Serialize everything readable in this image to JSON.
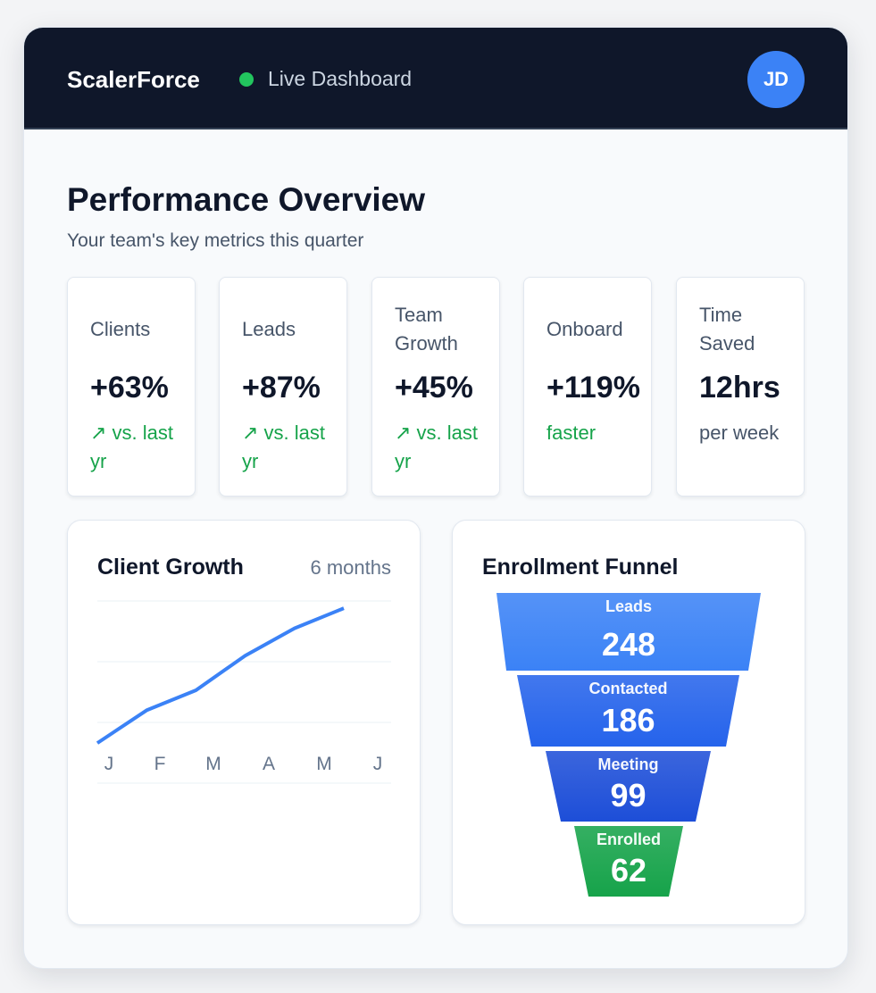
{
  "header": {
    "brand": "ScalerForce",
    "status": "Live Dashboard",
    "status_color": "#22c55e",
    "avatar_initials": "JD"
  },
  "overview": {
    "title": "Performance Overview",
    "subtitle": "Your team's key metrics this quarter"
  },
  "metrics": [
    {
      "label": "Clients",
      "value": "+63%",
      "sub": "↗ vs. last yr",
      "tone": "green"
    },
    {
      "label": "Leads",
      "value": "+87%",
      "sub": "↗ vs. last yr",
      "tone": "green"
    },
    {
      "label": "Team Growth",
      "value": "+45%",
      "sub": "↗ vs. last yr",
      "tone": "green"
    },
    {
      "label": "Onboard",
      "value": "+119%",
      "sub": "faster",
      "tone": "green"
    },
    {
      "label": "Time Saved",
      "value": "12hrs",
      "sub": "per week",
      "tone": "gray"
    }
  ],
  "growth": {
    "title": "Client Growth",
    "period": "6 months"
  },
  "chart_data": {
    "type": "line",
    "categories": [
      "J",
      "F",
      "M",
      "A",
      "M",
      "J"
    ],
    "values": [
      22,
      40,
      51,
      70,
      85,
      96
    ],
    "ylim": [
      0,
      100
    ],
    "grid": true,
    "color": "#3b82f6"
  },
  "funnel": {
    "title": "Enrollment Funnel",
    "stages": [
      {
        "label": "Leads",
        "value": "248",
        "color": "#3b82f6"
      },
      {
        "label": "Contacted",
        "value": "186",
        "color": "#2563eb"
      },
      {
        "label": "Meeting",
        "value": "99",
        "color": "#1d4ed8"
      },
      {
        "label": "Enrolled",
        "value": "62",
        "color": "#16a34a"
      }
    ]
  }
}
